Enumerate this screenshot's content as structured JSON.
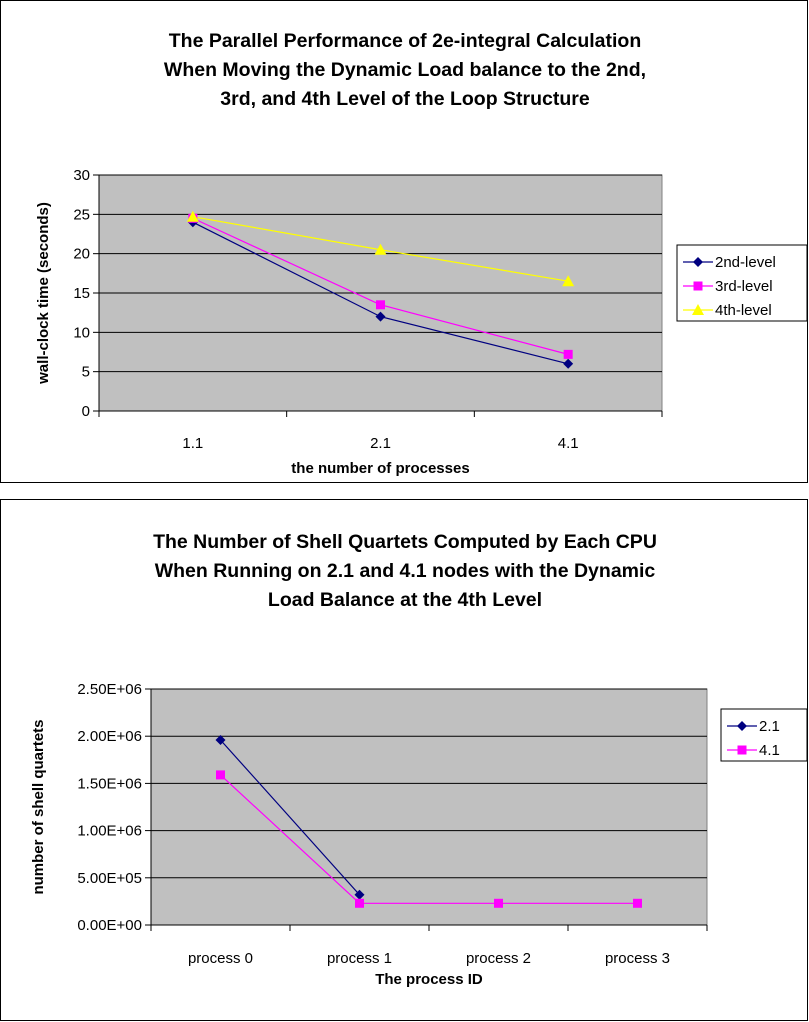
{
  "chart_data": [
    {
      "type": "line",
      "title_lines": [
        "The Parallel Performance of 2e-integral Calculation",
        "When Moving the Dynamic Load balance to the 2nd,",
        "3rd, and 4th Level of the Loop Structure"
      ],
      "xlabel": "the number of processes",
      "ylabel": "wall-clock time (seconds)",
      "categories": [
        "1.1",
        "2.1",
        "4.1"
      ],
      "ylim": [
        0,
        30
      ],
      "yticks": [
        "0",
        "5",
        "10",
        "15",
        "20",
        "25",
        "30"
      ],
      "grid": true,
      "legend_position": "right",
      "series": [
        {
          "name": "2nd-level",
          "color": "#000080",
          "marker": "diamond",
          "values": [
            24,
            12,
            6
          ]
        },
        {
          "name": "3rd-level",
          "color": "#ff00ff",
          "marker": "square",
          "values": [
            24.5,
            13.5,
            7.2
          ]
        },
        {
          "name": "4th-level",
          "color": "#ffff00",
          "marker": "triangle",
          "values": [
            24.7,
            20.5,
            16.5
          ]
        }
      ]
    },
    {
      "type": "line",
      "title_lines": [
        "The Number of Shell Quartets Computed by Each CPU",
        "When Running on 2.1 and 4.1 nodes with the Dynamic",
        "Load Balance at the 4th Level"
      ],
      "xlabel": "The process ID",
      "ylabel": "number of shell quartets",
      "categories": [
        "process 0",
        "process 1",
        "process 2",
        "process 3"
      ],
      "ylim": [
        0,
        2500000
      ],
      "yticks": [
        "0.00E+00",
        "5.00E+05",
        "1.00E+06",
        "1.50E+06",
        "2.00E+06",
        "2.50E+06"
      ],
      "grid": true,
      "legend_position": "right",
      "series": [
        {
          "name": "2.1",
          "color": "#000080",
          "marker": "diamond",
          "values": [
            1960000,
            320000,
            null,
            null
          ]
        },
        {
          "name": "4.1",
          "color": "#ff00ff",
          "marker": "square",
          "values": [
            1590000,
            230000,
            230000,
            230000
          ]
        }
      ]
    }
  ]
}
